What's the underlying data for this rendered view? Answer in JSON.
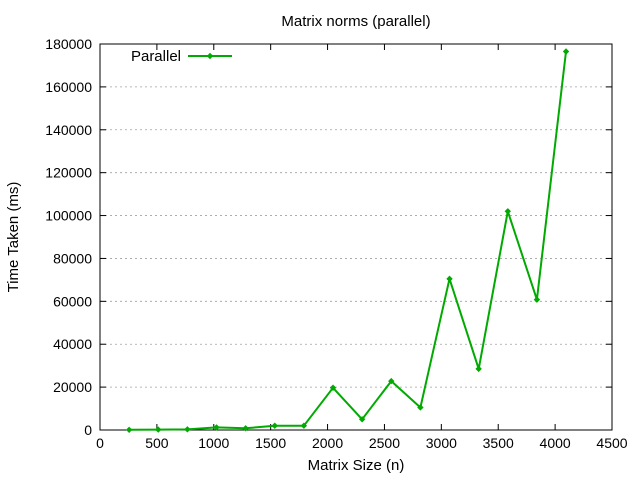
{
  "chart_data": {
    "type": "line",
    "title": "Matrix norms (parallel)",
    "xlabel": "Matrix Size (n)",
    "ylabel": "Time Taken (ms)",
    "xlim": [
      0,
      4500
    ],
    "ylim": [
      0,
      180000
    ],
    "xticks": [
      0,
      500,
      1000,
      1500,
      2000,
      2500,
      3000,
      3500,
      4000,
      4500
    ],
    "yticks": [
      0,
      20000,
      40000,
      60000,
      80000,
      100000,
      120000,
      140000,
      160000,
      180000
    ],
    "grid": true,
    "legend_position": "top-left",
    "series": [
      {
        "name": "Parallel",
        "color": "#00aa00",
        "marker": "diamond",
        "x": [
          256,
          512,
          768,
          1024,
          1280,
          1536,
          1792,
          2048,
          2304,
          2560,
          2816,
          3072,
          3328,
          3584,
          3840,
          4096
        ],
        "y": [
          100,
          200,
          300,
          1200,
          800,
          2000,
          2000,
          19700,
          5000,
          22800,
          10500,
          70500,
          28500,
          102000,
          60800,
          176500
        ]
      }
    ]
  }
}
